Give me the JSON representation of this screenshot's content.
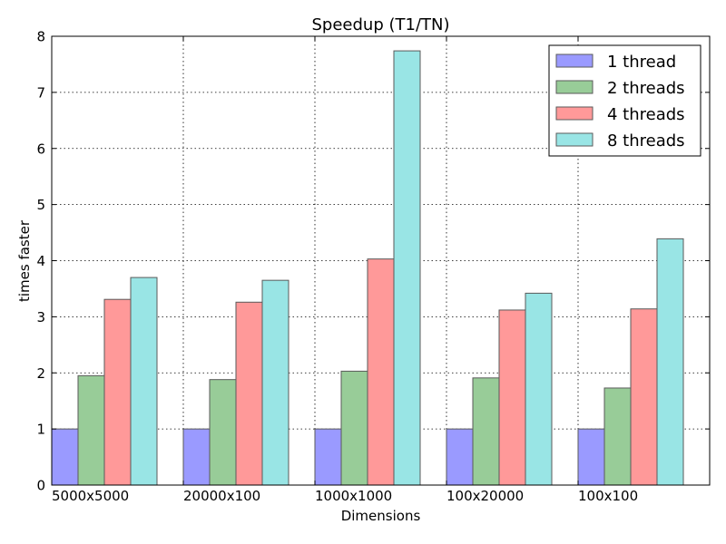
{
  "chart_data": {
    "type": "bar",
    "title": "Speedup (T1/TN)",
    "xlabel": "Dimensions",
    "ylabel": "times faster",
    "categories": [
      "5000x5000",
      "20000x100",
      "1000x1000",
      "100x20000",
      "100x100"
    ],
    "ylim": [
      0,
      8
    ],
    "yticks": [
      "0",
      "1",
      "2",
      "3",
      "4",
      "5",
      "6",
      "7",
      "8"
    ],
    "grid": true,
    "legend_position": "top-right",
    "series": [
      {
        "name": "1 thread",
        "color": "#9a9aff",
        "values": [
          1.0,
          1.0,
          1.0,
          1.0,
          1.0
        ]
      },
      {
        "name": "2 threads",
        "color": "#98cc98",
        "values": [
          1.95,
          1.88,
          2.03,
          1.91,
          1.73
        ]
      },
      {
        "name": "4 threads",
        "color": "#ff9999",
        "values": [
          3.31,
          3.26,
          4.03,
          3.12,
          3.14
        ]
      },
      {
        "name": "8 threads",
        "color": "#99e5e5",
        "values": [
          3.7,
          3.65,
          7.74,
          3.42,
          4.39
        ]
      }
    ]
  }
}
